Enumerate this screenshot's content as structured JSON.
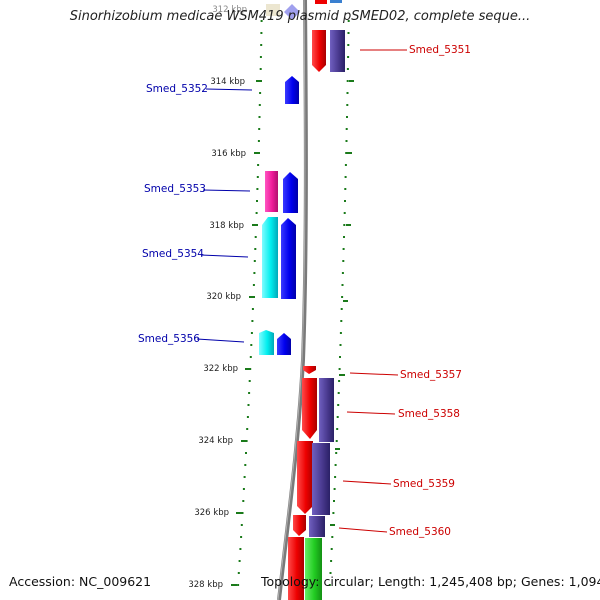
{
  "title": "Sinorhizobium medicae WSM419 plasmid pSMED02, complete seque...",
  "footer": {
    "accession_label": "Accession:",
    "accession": "NC_009621",
    "topology_label": "Topology:",
    "topology": "circular;",
    "length_label": "Length:",
    "length": "1,245,408 bp;",
    "genes_label": "Genes:",
    "genes": "1,094"
  },
  "colors": {
    "forward_blue": "#0000ee",
    "forward_cyan": "#00eeee",
    "forward_magenta": "#ee1a99",
    "reverse_red": "#ee0000",
    "reverse_slate": "#4a3a90",
    "reverse_green": "#22cc22",
    "label_blue": "#0000aa",
    "label_red": "#cc0000",
    "tick_green": "#1a7a1a",
    "backbone": "#7a7a7a"
  },
  "axis": {
    "unit": "kbp",
    "top_label": "312 kbp",
    "ticks": [
      "314 kbp",
      "316 kbp",
      "318 kbp",
      "320 kbp",
      "322 kbp",
      "324 kbp",
      "326 kbp",
      "328 kbp"
    ]
  },
  "genes_left": [
    {
      "name": "Smed_5352",
      "color": "forward_blue"
    },
    {
      "name": "Smed_5353",
      "color": "forward_magenta"
    },
    {
      "name": "Smed_5354",
      "color": "forward_cyan"
    },
    {
      "name": "Smed_5356",
      "color": "forward_cyan"
    }
  ],
  "genes_right": [
    {
      "name": "Smed_5351",
      "color": "reverse_red"
    },
    {
      "name": "Smed_5357",
      "color": "reverse_red"
    },
    {
      "name": "Smed_5358",
      "color": "reverse_slate"
    },
    {
      "name": "Smed_5359",
      "color": "reverse_red"
    },
    {
      "name": "Smed_5360",
      "color": "reverse_slate"
    }
  ]
}
